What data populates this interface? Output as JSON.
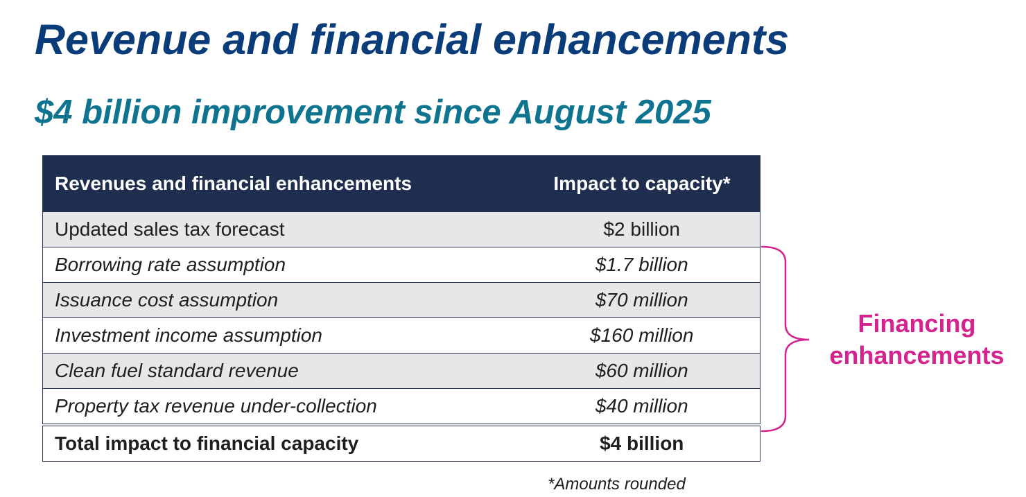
{
  "header": {
    "title": "Revenue and financial enhancements",
    "subtitle": "$4 billion improvement since August 2025"
  },
  "table": {
    "columns": [
      "Revenues and financial enhancements",
      "Impact to capacity*"
    ],
    "rows": [
      {
        "item": "Updated sales tax forecast",
        "impact": "$2 billion"
      },
      {
        "item": "Borrowing rate assumption",
        "impact": "$1.7 billion"
      },
      {
        "item": "Issuance cost assumption",
        "impact": "$70 million"
      },
      {
        "item": "Investment income assumption",
        "impact": "$160 million"
      },
      {
        "item": "Clean fuel standard revenue",
        "impact": "$60 million"
      },
      {
        "item": "Property tax revenue under-collection",
        "impact": "$40 million"
      }
    ],
    "total": {
      "item": "Total impact to financial capacity",
      "impact": "$4 billion"
    }
  },
  "annotation": {
    "line1": "Financing",
    "line2": "enhancements",
    "color": "#d4228f"
  },
  "footnote": "*Amounts rounded",
  "colors": {
    "title": "#0b3c7a",
    "subtitle": "#0f7490",
    "header_bg": "#1f2d4f",
    "row_shade": "#e7e7e9"
  }
}
